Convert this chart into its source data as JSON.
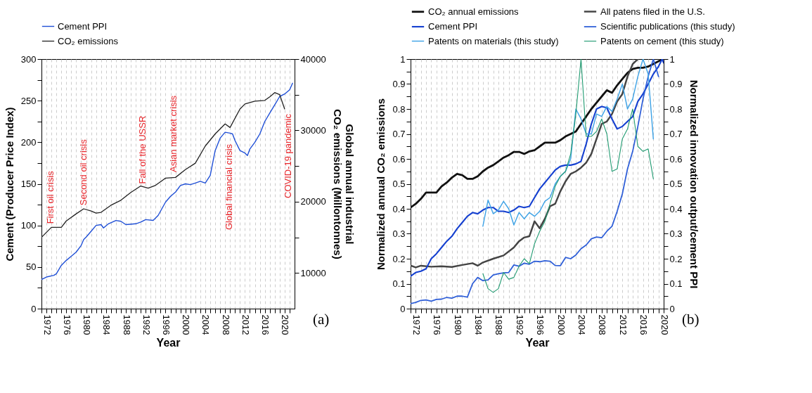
{
  "chart_data": [
    {
      "type": "line",
      "xlabel": "Year",
      "ylabel": "Cement (Producer Price Index)",
      "y2label": "Global annual industrial\nCO₂ emissions (Millontonnes)",
      "xlim": [
        1971,
        2022
      ],
      "ylim": [
        0,
        300
      ],
      "y2lim": [
        5000,
        40000
      ],
      "xticks": [
        {
          "value": 1971,
          "label": null
        },
        1972,
        {
          "value": 1973,
          "label": null
        },
        {
          "value": 1974,
          "label": null
        },
        {
          "value": 1975,
          "label": null
        },
        1976,
        {
          "value": 1977,
          "label": null
        },
        {
          "value": 1978,
          "label": null
        },
        {
          "value": 1979,
          "label": null
        },
        1980,
        {
          "value": 1981,
          "label": null
        },
        {
          "value": 1982,
          "label": null
        },
        {
          "value": 1983,
          "label": null
        },
        1984,
        {
          "value": 1985,
          "label": null
        },
        {
          "value": 1986,
          "label": null
        },
        {
          "value": 1987,
          "label": null
        },
        1988,
        {
          "value": 1989,
          "label": null
        },
        {
          "value": 1990,
          "label": null
        },
        {
          "value": 1991,
          "label": null
        },
        1992,
        {
          "value": 1993,
          "label": null
        },
        {
          "value": 1994,
          "label": null
        },
        {
          "value": 1995,
          "label": null
        },
        1996,
        {
          "value": 1997,
          "label": null
        },
        {
          "value": 1998,
          "label": null
        },
        {
          "value": 1999,
          "label": null
        },
        2000,
        {
          "value": 2001,
          "label": null
        },
        {
          "value": 2002,
          "label": null
        },
        {
          "value": 2003,
          "label": null
        },
        2004,
        {
          "value": 2005,
          "label": null
        },
        {
          "value": 2006,
          "label": null
        },
        {
          "value": 2007,
          "label": null
        },
        2008,
        {
          "value": 2009,
          "label": null
        },
        {
          "value": 2010,
          "label": null
        },
        {
          "value": 2011,
          "label": null
        },
        2012,
        {
          "value": 2013,
          "label": null
        },
        {
          "value": 2014,
          "label": null
        },
        {
          "value": 2015,
          "label": null
        },
        2016,
        {
          "value": 2017,
          "label": null
        },
        {
          "value": 2018,
          "label": null
        },
        {
          "value": 2019,
          "label": null
        },
        2020,
        {
          "value": 2021,
          "label": null
        }
      ],
      "yticks": [
        0,
        {
          "value": 25,
          "label": null
        },
        50,
        {
          "value": 75,
          "label": null
        },
        100,
        {
          "value": 125,
          "label": null
        },
        150,
        {
          "value": 175,
          "label": null
        },
        200,
        {
          "value": 225,
          "label": null
        },
        250,
        {
          "value": 275,
          "label": null
        },
        300
      ],
      "y2ticks": [
        10000,
        {
          "value": 15000,
          "label": null
        },
        20000,
        {
          "value": 25000,
          "label": null
        },
        30000,
        {
          "value": 35000,
          "label": null
        },
        40000
      ],
      "grid": "x",
      "legend": "top",
      "line_style": "solid",
      "series": [
        {
          "name": "Cement PPI",
          "color": "#1f4fd6",
          "axis": "y",
          "x": [
            1971,
            1972,
            1973.5,
            1974,
            1975,
            1976,
            1977,
            1978,
            1979,
            1979.5,
            1980,
            1981,
            1982,
            1983,
            1983.5,
            1984.5,
            1986,
            1987,
            1988,
            1990,
            1991,
            1992,
            1993.5,
            1994.5,
            1996,
            1997,
            1998,
            1999,
            2000,
            2001,
            2002,
            2003,
            2004,
            2005,
            2005.5,
            2006,
            2007,
            2008,
            2009,
            2009.5,
            2010,
            2011,
            2012,
            2012.5,
            2013,
            2014,
            2015,
            2016,
            2017,
            2018,
            2019,
            2020,
            2021,
            2021.6
          ],
          "values": [
            35,
            38,
            40,
            42,
            52,
            58,
            63,
            68,
            76,
            83,
            86,
            93,
            100,
            101,
            97,
            102,
            106,
            105,
            101,
            102,
            104,
            107,
            106,
            112,
            128,
            135,
            140,
            148,
            150,
            149,
            151,
            153,
            151,
            160,
            175,
            190,
            205,
            212,
            211,
            210,
            202,
            190,
            187,
            184,
            192,
            200,
            210,
            225,
            235,
            245,
            255,
            258,
            263,
            271
          ]
        },
        {
          "name": "CO₂ emissions",
          "color": "#222222",
          "axis": "y2",
          "x": [
            1971,
            1973,
            1975,
            1976,
            1978,
            1979.5,
            1981,
            1982,
            1983,
            1985,
            1987,
            1989,
            1991,
            1992.5,
            1994,
            1996,
            1998,
            2000,
            2002,
            2004,
            2006,
            2008,
            2009,
            2011,
            2012,
            2014,
            2016,
            2017,
            2018,
            2019,
            2020
          ],
          "values": [
            15000,
            16400,
            16400,
            17300,
            18300,
            19000,
            18700,
            18400,
            18500,
            19500,
            20200,
            21300,
            22200,
            21900,
            22300,
            23300,
            23400,
            24500,
            25400,
            27800,
            29500,
            30900,
            30400,
            33000,
            33700,
            34100,
            34200,
            34700,
            35300,
            35000,
            33000
          ]
        }
      ],
      "annotations": [
        {
          "text": "First oil crisis",
          "x": 1972.9,
          "y": 102
        },
        {
          "text": "Second oil crisis",
          "x": 1979.5,
          "y": 124
        },
        {
          "text": "Fall of the USSR",
          "x": 1991.4,
          "y": 150
        },
        "Asian market crisis",
        "Global financial crisis",
        "COVID-19 pandemic",
        "(a)"
      ]
    },
    {
      "type": "line",
      "xlabel": "Year",
      "ylabel": "Normalized annual CO₂ emissions",
      "y2label": "Normalized innovation output/cement PPI",
      "xlim": [
        1971,
        2020
      ],
      "ylim": [
        0,
        1
      ],
      "y2lim": [
        0,
        1
      ],
      "xticks": [
        {
          "value": 1971,
          "label": null
        },
        1972,
        {
          "value": 1973,
          "label": null
        },
        {
          "value": 1974,
          "label": null
        },
        {
          "value": 1975,
          "label": null
        },
        1976,
        {
          "value": 1977,
          "label": null
        },
        {
          "value": 1978,
          "label": null
        },
        {
          "value": 1979,
          "label": null
        },
        1980,
        {
          "value": 1981,
          "label": null
        },
        {
          "value": 1982,
          "label": null
        },
        {
          "value": 1983,
          "label": null
        },
        1984,
        {
          "value": 1985,
          "label": null
        },
        {
          "value": 1986,
          "label": null
        },
        {
          "value": 1987,
          "label": null
        },
        1988,
        {
          "value": 1989,
          "label": null
        },
        {
          "value": 1990,
          "label": null
        },
        {
          "value": 1991,
          "label": null
        },
        1992,
        {
          "value": 1993,
          "label": null
        },
        {
          "value": 1994,
          "label": null
        },
        {
          "value": 1995,
          "label": null
        },
        1996,
        {
          "value": 1997,
          "label": null
        },
        {
          "value": 1998,
          "label": null
        },
        {
          "value": 1999,
          "label": null
        },
        2000,
        {
          "value": 2001,
          "label": null
        },
        {
          "value": 2002,
          "label": null
        },
        {
          "value": 2003,
          "label": null
        },
        2004,
        {
          "value": 2005,
          "label": null
        },
        {
          "value": 2006,
          "label": null
        },
        {
          "value": 2007,
          "label": null
        },
        2008,
        {
          "value": 2009,
          "label": null
        },
        {
          "value": 2010,
          "label": null
        },
        {
          "value": 2011,
          "label": null
        },
        2012,
        {
          "value": 2013,
          "label": null
        },
        {
          "value": 2014,
          "label": null
        },
        {
          "value": 2015,
          "label": null
        },
        2016,
        {
          "value": 2017,
          "label": null
        },
        {
          "value": 2018,
          "label": null
        },
        {
          "value": 2019,
          "label": null
        },
        2020
      ],
      "yticks": [
        0,
        {
          "value": 0.05,
          "label": null
        },
        0.1,
        {
          "value": 0.15,
          "label": null
        },
        0.2,
        {
          "value": 0.25,
          "label": null
        },
        0.3,
        {
          "value": 0.35,
          "label": null
        },
        0.4,
        {
          "value": 0.45,
          "label": null
        },
        0.5,
        {
          "value": 0.55,
          "label": null
        },
        0.6,
        {
          "value": 0.65,
          "label": null
        },
        0.7,
        {
          "value": 0.75,
          "label": null
        },
        0.8,
        {
          "value": 0.85,
          "label": null
        },
        0.9,
        {
          "value": 0.95,
          "label": null
        },
        1
      ],
      "y2ticks": [
        0,
        {
          "value": 0.05,
          "label": null
        },
        0.1,
        {
          "value": 0.15,
          "label": null
        },
        0.2,
        {
          "value": 0.25,
          "label": null
        },
        0.3,
        {
          "value": 0.35,
          "label": null
        },
        0.4,
        {
          "value": 0.45,
          "label": null
        },
        0.5,
        {
          "value": 0.55,
          "label": null
        },
        0.6,
        {
          "value": 0.65,
          "label": null
        },
        0.7,
        {
          "value": 0.75,
          "label": null
        },
        0.8,
        {
          "value": 0.85,
          "label": null
        },
        0.9,
        {
          "value": 0.95,
          "label": null
        },
        1
      ],
      "grid": "x",
      "legend": "top",
      "line_style": "solid",
      "series": [
        {
          "name": "CO₂ annual emissions",
          "color": "#111111",
          "axis": "y",
          "x": [
            1971,
            1972,
            1973,
            1974,
            1976,
            1977,
            1978,
            1979,
            1980,
            1981,
            1982,
            1983,
            1984,
            1985,
            1986,
            1987,
            1988,
            1989,
            1990,
            1991,
            1992,
            1993,
            1994,
            1995,
            1996,
            1997,
            1998,
            1999,
            2000,
            2001,
            2002,
            2003,
            2004,
            2005,
            2006,
            2007,
            2008,
            2009,
            2010,
            2011,
            2012,
            2013,
            2014,
            2015,
            2016,
            2017,
            2018,
            2019.8
          ],
          "values": [
            0.405,
            0.42,
            0.44,
            0.465,
            0.465,
            0.49,
            0.505,
            0.525,
            0.54,
            0.535,
            0.52,
            0.52,
            0.53,
            0.55,
            0.565,
            0.575,
            0.59,
            0.605,
            0.615,
            0.628,
            0.628,
            0.62,
            0.63,
            0.635,
            0.65,
            0.665,
            0.665,
            0.665,
            0.675,
            0.69,
            0.7,
            0.71,
            0.74,
            0.77,
            0.8,
            0.825,
            0.85,
            0.875,
            0.865,
            0.895,
            0.92,
            0.945,
            0.96,
            0.965,
            0.965,
            0.97,
            0.98,
            1
          ]
        },
        {
          "name": "All patens filed in the U.S.",
          "color": "#444444",
          "axis": "y2",
          "x": [
            1971,
            1972,
            1973,
            1975,
            1977,
            1979,
            1981,
            1983,
            1984,
            1985,
            1987,
            1989,
            1991,
            1992,
            1993,
            1994,
            1995,
            1996,
            1997,
            1998,
            1999,
            2000,
            2001,
            2002,
            2003,
            2004,
            2005,
            2006,
            2007,
            2008,
            2009,
            2010,
            2011,
            2012,
            2013,
            2014,
            2015
          ],
          "values": [
            0.173,
            0.165,
            0.172,
            0.168,
            0.17,
            0.167,
            0.175,
            0.182,
            0.172,
            0.185,
            0.2,
            0.213,
            0.245,
            0.27,
            0.285,
            0.29,
            0.35,
            0.322,
            0.36,
            0.41,
            0.42,
            0.47,
            0.51,
            0.54,
            0.55,
            0.565,
            0.585,
            0.62,
            0.68,
            0.74,
            0.75,
            0.78,
            0.83,
            0.86,
            0.93,
            0.98,
            1
          ]
        },
        {
          "name": "Cement PPI",
          "color": "#1540d0",
          "axis": "y2",
          "x": [
            1971,
            1972,
            1973,
            1974,
            1975,
            1976,
            1977,
            1978,
            1979,
            1980,
            1981,
            1982,
            1983,
            1984,
            1985,
            1986,
            1987,
            1988,
            1989,
            1990,
            1991,
            1992,
            1993,
            1994,
            1995,
            1996,
            1997,
            1998,
            1999,
            2000,
            2001,
            2002,
            2003,
            2004,
            2005,
            2006,
            2007,
            2008,
            2009,
            2010,
            2011,
            2012,
            2013,
            2014,
            2015,
            2016,
            2017,
            2018,
            2019,
            2019.7,
            2020
          ],
          "values": [
            0.13,
            0.145,
            0.15,
            0.16,
            0.2,
            0.22,
            0.245,
            0.27,
            0.29,
            0.32,
            0.345,
            0.37,
            0.385,
            0.38,
            0.395,
            0.405,
            0.405,
            0.39,
            0.39,
            0.385,
            0.395,
            0.41,
            0.405,
            0.41,
            0.445,
            0.48,
            0.505,
            0.53,
            0.555,
            0.57,
            0.575,
            0.575,
            0.58,
            0.59,
            0.66,
            0.74,
            0.8,
            0.81,
            0.805,
            0.76,
            0.72,
            0.73,
            0.75,
            0.77,
            0.83,
            0.86,
            0.9,
            0.94,
            0.97,
            1,
            0.985
          ]
        },
        {
          "name": "Scientific publications (this study)",
          "color": "#2f5fd8",
          "axis": "y2",
          "x": [
            1971,
            1972,
            1973,
            1974,
            1975,
            1976,
            1977,
            1978,
            1979,
            1980,
            1981,
            1982,
            1983,
            1984,
            1985,
            1986,
            1987,
            1988,
            1989,
            1990,
            1991,
            1992,
            1993,
            1994,
            1995,
            1996,
            1997,
            1998,
            1999,
            2000,
            2001,
            2002,
            2003,
            2004,
            2005,
            2006,
            2007,
            2008,
            2009,
            2010,
            2011,
            2012,
            2013,
            2014,
            2015,
            2016,
            2017,
            2018,
            2019
          ],
          "values": [
            0.02,
            0.025,
            0.033,
            0.035,
            0.03,
            0.037,
            0.038,
            0.045,
            0.042,
            0.05,
            0.05,
            0.046,
            0.1,
            0.125,
            0.112,
            0.115,
            0.135,
            0.14,
            0.143,
            0.145,
            0.175,
            0.17,
            0.182,
            0.178,
            0.19,
            0.188,
            0.192,
            0.19,
            0.173,
            0.172,
            0.205,
            0.2,
            0.215,
            0.24,
            0.255,
            0.28,
            0.287,
            0.284,
            0.31,
            0.33,
            0.39,
            0.46,
            0.56,
            0.63,
            0.73,
            0.84,
            0.93,
            1,
            0.93
          ]
        },
        {
          "name": "Patents on materials (this study)",
          "color": "#3fa3e6",
          "axis": "y2",
          "x": [
            1985,
            1986,
            1987,
            1988,
            1989,
            1990,
            1991,
            1992,
            1993,
            1994,
            1995,
            1996,
            1997,
            1998,
            1999,
            2000,
            2001,
            2002,
            2003,
            2004,
            2005,
            2006,
            2007,
            2008,
            2009,
            2010,
            2011,
            2012,
            2013,
            2014,
            2015,
            2016,
            2017,
            2018
          ],
          "values": [
            0.33,
            0.435,
            0.38,
            0.395,
            0.43,
            0.4,
            0.335,
            0.385,
            0.36,
            0.385,
            0.37,
            0.39,
            0.43,
            0.445,
            0.5,
            0.53,
            0.55,
            0.6,
            0.8,
            0.76,
            0.7,
            0.7,
            0.78,
            0.77,
            0.81,
            0.79,
            0.84,
            0.9,
            0.8,
            0.84,
            0.93,
            1,
            0.94,
            0.68
          ]
        },
        {
          "name": "Patents on cement (this study)",
          "color": "#1f9a70",
          "axis": "y2",
          "x": [
            1985,
            1986,
            1987,
            1988,
            1989,
            1990,
            1991,
            1992,
            1993,
            1994,
            1995,
            1996,
            1997,
            1998,
            1999,
            2000,
            2001,
            2002,
            2003,
            2004,
            2005,
            2006,
            2007,
            2008,
            2009,
            2010,
            2011,
            2012,
            2013,
            2014,
            2015,
            2016,
            2017,
            2018
          ],
          "values": [
            0.14,
            0.08,
            0.065,
            0.08,
            0.145,
            0.118,
            0.125,
            0.17,
            0.2,
            0.18,
            0.26,
            0.31,
            0.35,
            0.42,
            0.49,
            0.53,
            0.55,
            0.62,
            0.78,
            1,
            0.69,
            0.69,
            0.71,
            0.76,
            0.7,
            0.55,
            0.56,
            0.68,
            0.72,
            0.8,
            0.65,
            0.63,
            0.64,
            0.52
          ]
        }
      ],
      "annotations": [
        "(b)"
      ]
    }
  ]
}
